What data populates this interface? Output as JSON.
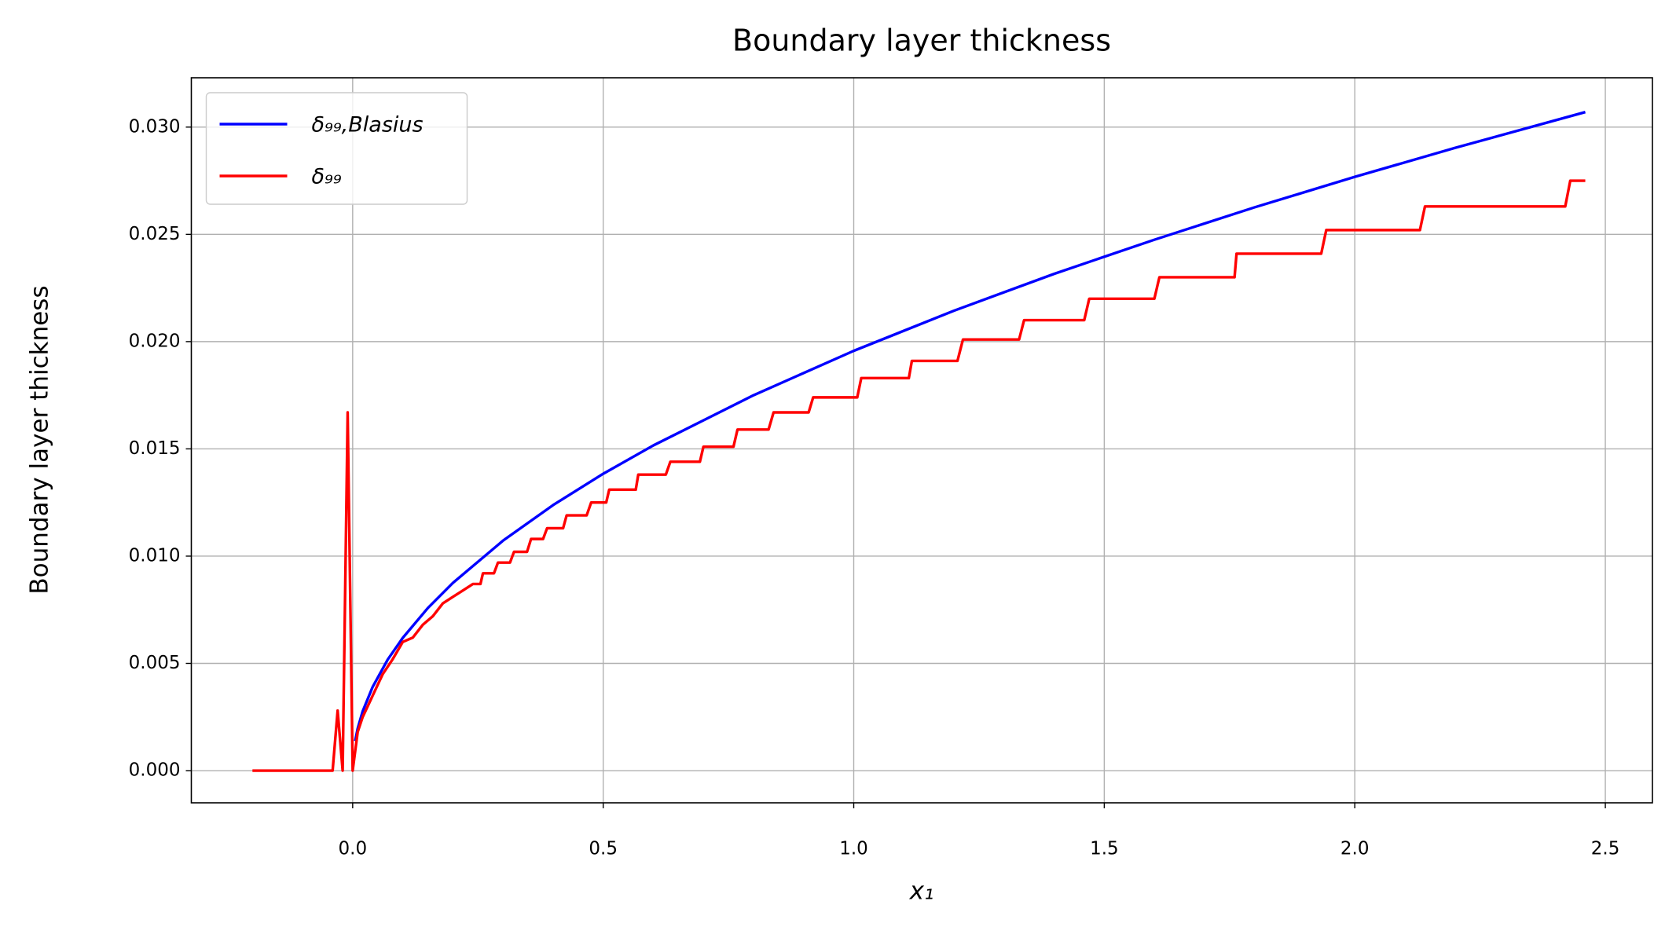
{
  "chart_data": {
    "type": "line",
    "title": "Boundary layer thickness",
    "x_label": "x₁",
    "y_label": "Boundary layer thickness",
    "xlim": [
      -0.322,
      2.594
    ],
    "ylim": [
      -0.0015,
      0.0323
    ],
    "xticks": [
      {
        "value": 0,
        "label": "0.0"
      },
      0.5,
      {
        "value": 1,
        "label": "1.0"
      },
      1.5,
      {
        "value": 2,
        "label": "2.0"
      },
      2.5
    ],
    "yticks": [
      {
        "value": 0,
        "label": "0.000"
      },
      {
        "value": 0.005,
        "label": "0.005"
      },
      {
        "value": 0.01,
        "label": "0.010"
      },
      {
        "value": 0.015,
        "label": "0.015"
      },
      {
        "value": 0.02,
        "label": "0.020"
      },
      {
        "value": 0.025,
        "label": "0.025"
      },
      {
        "value": 0.03,
        "label": "0.030"
      }
    ],
    "grid": true,
    "legend": "upper left",
    "series": [
      {
        "name": "δ₉₉,Blasius",
        "color": "#0000ff",
        "x": [
          0.005,
          0.01,
          0.02,
          0.04,
          0.07,
          0.1,
          0.15,
          0.2,
          0.3,
          0.4,
          0.5,
          0.6,
          0.8,
          1.0,
          1.2,
          1.4,
          1.6,
          1.8,
          2.0,
          2.2,
          2.46
        ],
        "values": [
          0.00138,
          0.00196,
          0.00277,
          0.00391,
          0.00518,
          0.00619,
          0.00758,
          0.00875,
          0.01072,
          0.01238,
          0.01384,
          0.01516,
          0.0175,
          0.01957,
          0.02144,
          0.02316,
          0.02475,
          0.02626,
          0.02768,
          0.02903,
          0.0307
        ]
      },
      {
        "name": "δ₉₉",
        "color": "#ff0000",
        "x": [
          -0.2,
          -0.04,
          -0.03,
          -0.02,
          -0.01,
          0,
          0.01,
          0.02,
          0.04,
          0.06,
          0.08,
          0.1,
          0.12,
          0.14,
          0.16,
          0.18,
          0.2,
          0.22,
          0.24,
          0.255,
          0.26,
          0.282,
          0.29,
          0.314,
          0.322,
          0.348,
          0.356,
          0.38,
          0.388,
          0.42,
          0.427,
          0.467,
          0.476,
          0.506,
          0.512,
          0.565,
          0.57,
          0.625,
          0.634,
          0.693,
          0.7,
          0.76,
          0.768,
          0.83,
          0.84,
          0.91,
          0.919,
          1.007,
          1.015,
          1.11,
          1.116,
          1.207,
          1.218,
          1.33,
          1.34,
          1.46,
          1.47,
          1.6,
          1.61,
          1.76,
          1.764,
          1.933,
          1.943,
          2.13,
          2.14,
          2.42,
          2.43,
          2.46
        ],
        "values": [
          0,
          0,
          0.0028,
          0,
          0.0167,
          0,
          0.0018,
          0.0025,
          0.0035,
          0.0045,
          0.0052,
          0.006,
          0.0062,
          0.0068,
          0.0072,
          0.0078,
          0.0081,
          0.0084,
          0.0087,
          0.0087,
          0.0092,
          0.0092,
          0.0097,
          0.0097,
          0.0102,
          0.0102,
          0.0108,
          0.0108,
          0.0113,
          0.0113,
          0.0119,
          0.0119,
          0.0125,
          0.0125,
          0.0131,
          0.0131,
          0.0138,
          0.0138,
          0.0144,
          0.0144,
          0.0151,
          0.0151,
          0.0159,
          0.0159,
          0.0167,
          0.0167,
          0.0174,
          0.0174,
          0.0183,
          0.0183,
          0.0191,
          0.0191,
          0.0201,
          0.0201,
          0.021,
          0.021,
          0.022,
          0.022,
          0.023,
          0.023,
          0.0241,
          0.0241,
          0.0252,
          0.0252,
          0.0263,
          0.0263,
          0.0275,
          0.0275
        ]
      }
    ]
  }
}
